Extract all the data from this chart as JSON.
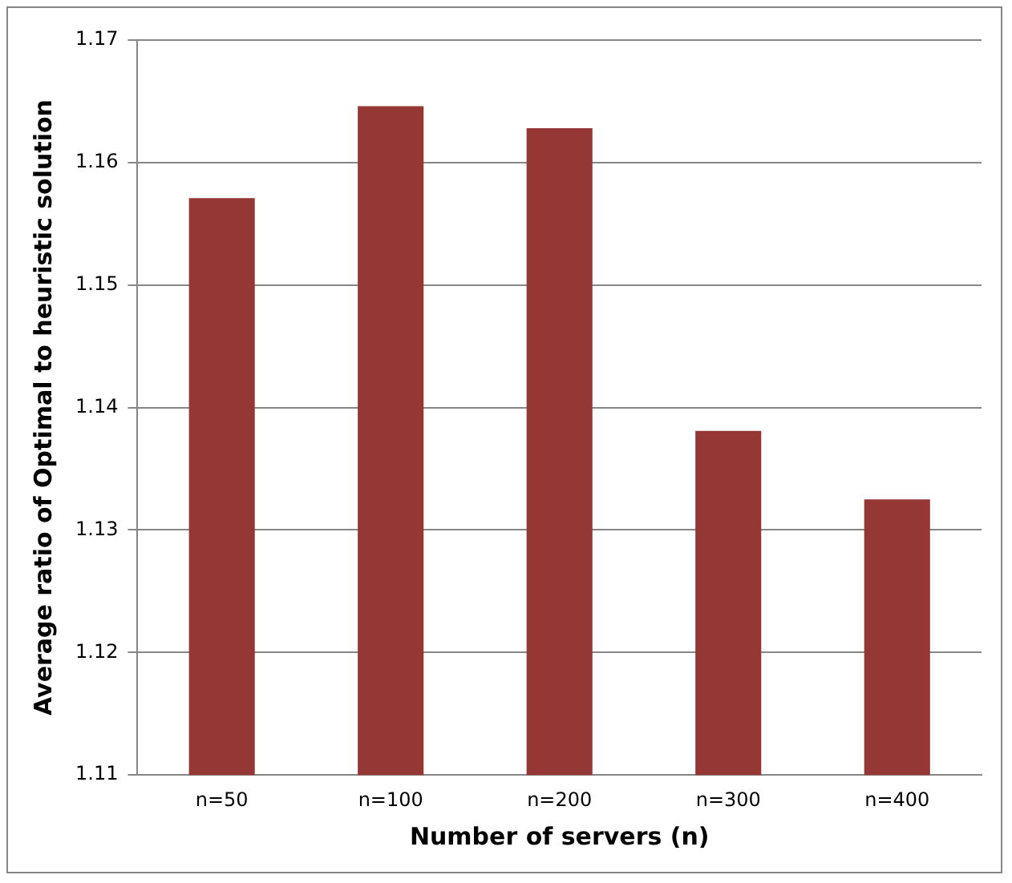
{
  "chart_data": {
    "type": "bar",
    "xlabel": "Number of servers (n)",
    "ylabel": "Average ratio of Optimal to heuristic solution",
    "categories": [
      "n=50",
      "n=100",
      "n=200",
      "n=300",
      "n=400"
    ],
    "values": [
      1.1571,
      1.1646,
      1.1628,
      1.1381,
      1.1325
    ],
    "color": "#953735",
    "ylim": [
      1.11,
      1.17
    ],
    "yticks": [
      1.11,
      1.12,
      1.13,
      1.14,
      1.15,
      1.16,
      1.17
    ],
    "grid": "y",
    "legend": false
  }
}
